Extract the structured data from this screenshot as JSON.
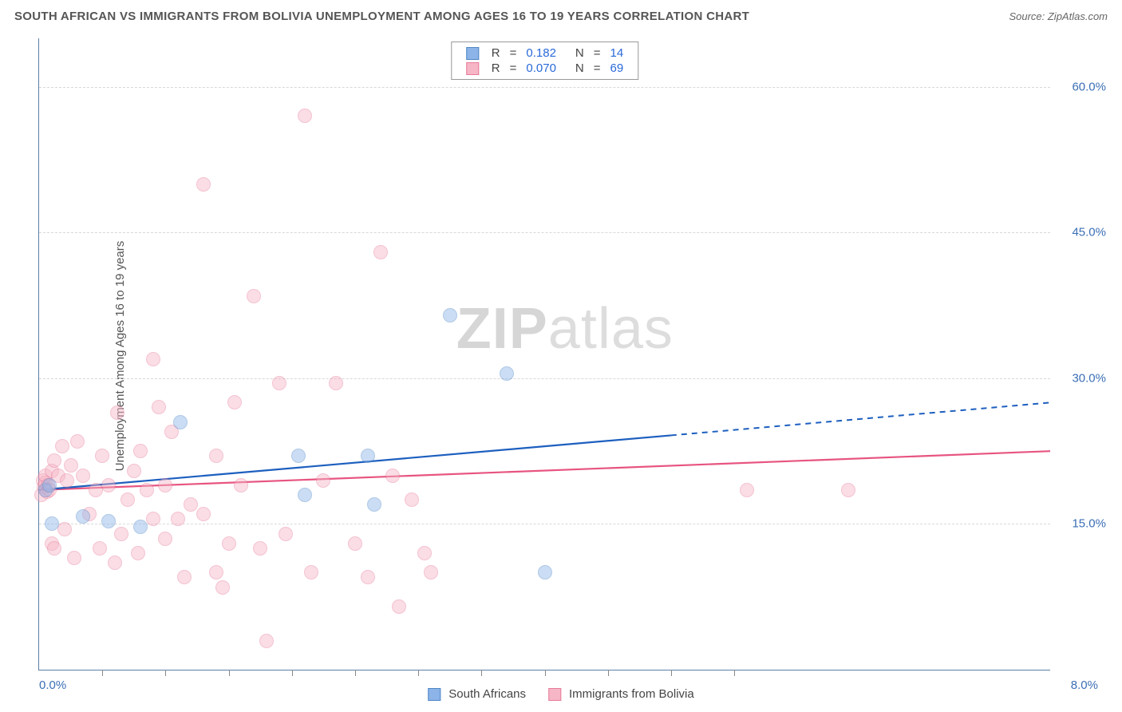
{
  "title": "SOUTH AFRICAN VS IMMIGRANTS FROM BOLIVIA UNEMPLOYMENT AMONG AGES 16 TO 19 YEARS CORRELATION CHART",
  "source": "Source: ZipAtlas.com",
  "yaxis_label": "Unemployment Among Ages 16 to 19 years",
  "watermark_prefix": "ZIP",
  "watermark_suffix": "atlas",
  "chart": {
    "type": "scatter",
    "xlim": [
      0.0,
      8.0
    ],
    "ylim": [
      0.0,
      65.0
    ],
    "x_min_label": "0.0%",
    "x_max_label": "8.0%",
    "y_ticks": [
      15.0,
      30.0,
      45.0,
      60.0
    ],
    "y_tick_labels": [
      "15.0%",
      "30.0%",
      "45.0%",
      "60.0%"
    ],
    "x_tick_positions": [
      0.5,
      1.0,
      1.5,
      2.0,
      2.5,
      3.0,
      3.5,
      4.0,
      4.5,
      5.0,
      5.5
    ],
    "gridline_color": "#d8d8d8",
    "axis_color": "#5b7fa6",
    "label_color": "#3b6fb5",
    "background_color": "#ffffff",
    "marker_radius": 9,
    "marker_opacity": 0.45,
    "series": {
      "a": {
        "name": "South Africans",
        "fill": "#8cb4e8",
        "stroke": "#4f86c6",
        "trend_color": "#1d5fbf",
        "R": "0.182",
        "N": "14",
        "regression": {
          "x0": 0.0,
          "y0": 18.5,
          "x1": 8.0,
          "y1": 27.5,
          "x_solid_end": 5.0
        },
        "points": [
          [
            0.05,
            18.5
          ],
          [
            0.08,
            19.0
          ],
          [
            0.1,
            15.0
          ],
          [
            0.35,
            15.8
          ],
          [
            0.55,
            15.3
          ],
          [
            0.8,
            14.7
          ],
          [
            1.12,
            25.5
          ],
          [
            2.05,
            22.0
          ],
          [
            2.1,
            18.0
          ],
          [
            2.6,
            22.0
          ],
          [
            2.65,
            17.0
          ],
          [
            3.25,
            36.5
          ],
          [
            3.7,
            30.5
          ],
          [
            4.0,
            10.0
          ]
        ]
      },
      "b": {
        "name": "Immigrants from Bolivia",
        "fill": "#f6b6c6",
        "stroke": "#e77a9a",
        "trend_color": "#e75480",
        "R": "0.070",
        "N": "69",
        "regression": {
          "x0": 0.0,
          "y0": 18.5,
          "x1": 8.0,
          "y1": 22.5,
          "x_solid_end": 8.0
        },
        "points": [
          [
            0.02,
            18.0
          ],
          [
            0.03,
            19.5
          ],
          [
            0.04,
            18.8
          ],
          [
            0.05,
            19.2
          ],
          [
            0.06,
            18.3
          ],
          [
            0.05,
            20.0
          ],
          [
            0.07,
            19.0
          ],
          [
            0.08,
            18.5
          ],
          [
            0.1,
            20.5
          ],
          [
            0.1,
            13.0
          ],
          [
            0.12,
            21.5
          ],
          [
            0.12,
            12.5
          ],
          [
            0.15,
            20.0
          ],
          [
            0.18,
            23.0
          ],
          [
            0.2,
            14.5
          ],
          [
            0.22,
            19.5
          ],
          [
            0.25,
            21.0
          ],
          [
            0.28,
            11.5
          ],
          [
            0.3,
            23.5
          ],
          [
            0.35,
            20.0
          ],
          [
            0.4,
            16.0
          ],
          [
            0.45,
            18.5
          ],
          [
            0.48,
            12.5
          ],
          [
            0.5,
            22.0
          ],
          [
            0.55,
            19.0
          ],
          [
            0.6,
            11.0
          ],
          [
            0.62,
            26.5
          ],
          [
            0.65,
            14.0
          ],
          [
            0.7,
            17.5
          ],
          [
            0.75,
            20.5
          ],
          [
            0.78,
            12.0
          ],
          [
            0.8,
            22.5
          ],
          [
            0.85,
            18.5
          ],
          [
            0.9,
            32.0
          ],
          [
            0.9,
            15.5
          ],
          [
            0.95,
            27.0
          ],
          [
            1.0,
            13.5
          ],
          [
            1.0,
            19.0
          ],
          [
            1.05,
            24.5
          ],
          [
            1.1,
            15.5
          ],
          [
            1.15,
            9.5
          ],
          [
            1.2,
            17.0
          ],
          [
            1.3,
            50.0
          ],
          [
            1.3,
            16.0
          ],
          [
            1.4,
            10.0
          ],
          [
            1.4,
            22.0
          ],
          [
            1.45,
            8.5
          ],
          [
            1.5,
            13.0
          ],
          [
            1.55,
            27.5
          ],
          [
            1.6,
            19.0
          ],
          [
            1.7,
            38.5
          ],
          [
            1.75,
            12.5
          ],
          [
            1.8,
            3.0
          ],
          [
            1.9,
            29.5
          ],
          [
            1.95,
            14.0
          ],
          [
            2.1,
            57.0
          ],
          [
            2.15,
            10.0
          ],
          [
            2.25,
            19.5
          ],
          [
            2.35,
            29.5
          ],
          [
            2.5,
            13.0
          ],
          [
            2.6,
            9.5
          ],
          [
            2.7,
            43.0
          ],
          [
            2.8,
            20.0
          ],
          [
            2.85,
            6.5
          ],
          [
            2.95,
            17.5
          ],
          [
            3.05,
            12.0
          ],
          [
            3.1,
            10.0
          ],
          [
            5.6,
            18.5
          ],
          [
            6.4,
            18.5
          ]
        ]
      }
    }
  },
  "legend_labels": {
    "R": "R",
    "N": "N",
    "eq": "="
  }
}
